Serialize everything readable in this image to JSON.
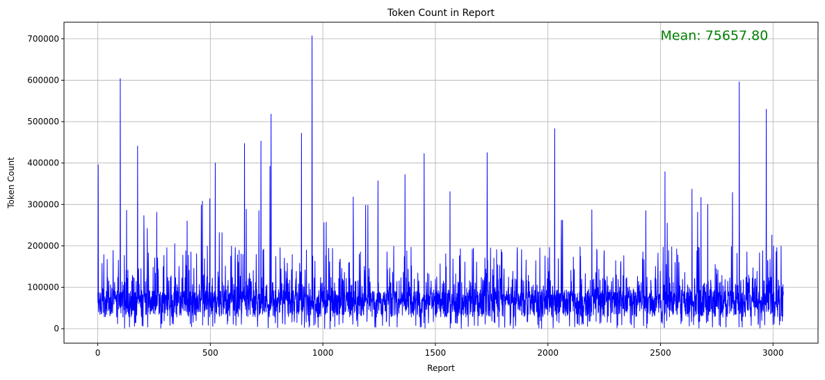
{
  "chart_data": {
    "type": "line",
    "title": "Token Count in Report",
    "xlabel": "Report",
    "ylabel": "Token Count",
    "xlim": [
      -150,
      3200
    ],
    "ylim": [
      -35000,
      740000
    ],
    "x_ticks": [
      0,
      500,
      1000,
      1500,
      2000,
      2500,
      3000
    ],
    "y_ticks": [
      0,
      100000,
      200000,
      300000,
      400000,
      500000,
      600000,
      700000
    ],
    "grid": true,
    "n_points": 3047,
    "series": [
      {
        "color": "#0000ff",
        "baseline_mean": 62000,
        "peaks": [
          [
            2,
            396000
          ],
          [
            100,
            604000
          ],
          [
            128,
            286000
          ],
          [
            177,
            441000
          ],
          [
            205,
            273000
          ],
          [
            220,
            242000
          ],
          [
            262,
            281000
          ],
          [
            342,
            205000
          ],
          [
            397,
            260000
          ],
          [
            460,
            298000
          ],
          [
            465,
            308000
          ],
          [
            498,
            314000
          ],
          [
            522,
            400000
          ],
          [
            540,
            232000
          ],
          [
            552,
            232000
          ],
          [
            652,
            447000
          ],
          [
            660,
            288000
          ],
          [
            716,
            285000
          ],
          [
            725,
            453000
          ],
          [
            765,
            392000
          ],
          [
            770,
            518000
          ],
          [
            905,
            472000
          ],
          [
            952,
            707000
          ],
          [
            1005,
            256000
          ],
          [
            1015,
            257000
          ],
          [
            1135,
            318000
          ],
          [
            1190,
            298000
          ],
          [
            1200,
            298000
          ],
          [
            1245,
            357000
          ],
          [
            1365,
            372000
          ],
          [
            1450,
            423000
          ],
          [
            1565,
            331000
          ],
          [
            1730,
            425000
          ],
          [
            2030,
            483000
          ],
          [
            2060,
            262000
          ],
          [
            2065,
            262000
          ],
          [
            2195,
            287000
          ],
          [
            2435,
            285000
          ],
          [
            2520,
            379000
          ],
          [
            2530,
            255000
          ],
          [
            2640,
            337000
          ],
          [
            2665,
            281000
          ],
          [
            2680,
            317000
          ],
          [
            2710,
            300000
          ],
          [
            2820,
            329000
          ],
          [
            2850,
            596000
          ],
          [
            2970,
            530000
          ],
          [
            2995,
            226000
          ]
        ]
      }
    ],
    "annotations": [
      {
        "text": "Mean: 75657.80",
        "color": "#008000",
        "position": "top-right"
      }
    ]
  }
}
